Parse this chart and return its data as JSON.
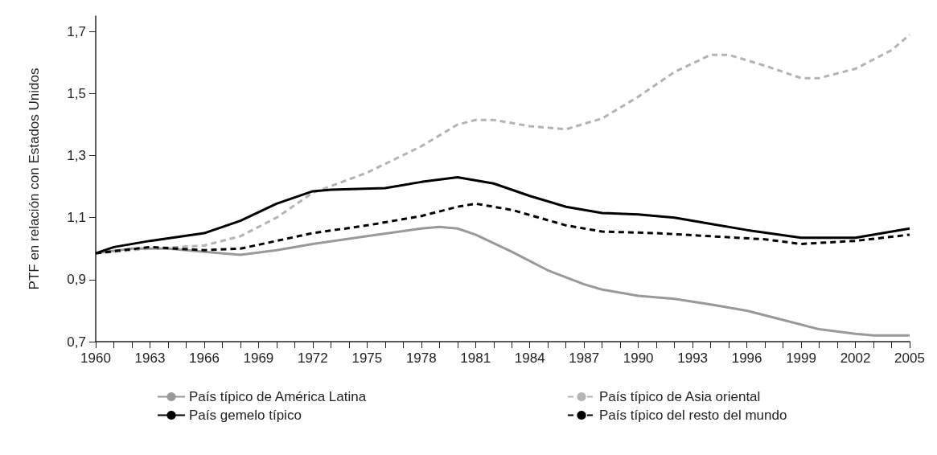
{
  "chart_data": {
    "type": "line",
    "ylabel": "PTF en relación con Estados Unidos",
    "xlim": [
      1960,
      2005
    ],
    "xticks": [
      1960,
      {
        "value": 1961,
        "label": null
      },
      {
        "value": 1962,
        "label": null
      },
      1963,
      {
        "value": 1964,
        "label": null
      },
      {
        "value": 1965,
        "label": null
      },
      1966,
      {
        "value": 1967,
        "label": null
      },
      {
        "value": 1968,
        "label": null
      },
      1969,
      {
        "value": 1970,
        "label": null
      },
      {
        "value": 1971,
        "label": null
      },
      1972,
      {
        "value": 1973,
        "label": null
      },
      {
        "value": 1974,
        "label": null
      },
      1975,
      {
        "value": 1976,
        "label": null
      },
      {
        "value": 1977,
        "label": null
      },
      1978,
      {
        "value": 1979,
        "label": null
      },
      {
        "value": 1980,
        "label": null
      },
      1981,
      {
        "value": 1982,
        "label": null
      },
      {
        "value": 1983,
        "label": null
      },
      1984,
      {
        "value": 1985,
        "label": null
      },
      {
        "value": 1986,
        "label": null
      },
      1987,
      {
        "value": 1988,
        "label": null
      },
      {
        "value": 1989,
        "label": null
      },
      1990,
      {
        "value": 1991,
        "label": null
      },
      {
        "value": 1992,
        "label": null
      },
      1993,
      {
        "value": 1994,
        "label": null
      },
      {
        "value": 1995,
        "label": null
      },
      1996,
      {
        "value": 1997,
        "label": null
      },
      {
        "value": 1998,
        "label": null
      },
      1999,
      {
        "value": 2000,
        "label": null
      },
      {
        "value": 2001,
        "label": null
      },
      2002,
      {
        "value": 2003,
        "label": null
      },
      {
        "value": 2004,
        "label": null
      },
      2005
    ],
    "ylim": [
      0.7,
      1.75
    ],
    "yticks": [
      {
        "value": 0.7,
        "label": "0,7"
      },
      {
        "value": 0.9,
        "label": "0,9"
      },
      {
        "value": 1.1,
        "label": "1,1"
      },
      {
        "value": 1.3,
        "label": "1,3"
      },
      {
        "value": 1.5,
        "label": "1,5"
      },
      {
        "value": 1.7,
        "label": "1,7"
      }
    ],
    "grid": false,
    "legend": "bottom",
    "marker": "none",
    "series": [
      {
        "name": "País típico de América Latina",
        "color": "#999999",
        "line_style": "solid",
        "x": [
          1960,
          1962,
          1964,
          1966,
          1968,
          1970,
          1972,
          1975,
          1978,
          1979,
          1980,
          1981,
          1983,
          1985,
          1987,
          1988,
          1990,
          1992,
          1994,
          1996,
          1998,
          2000,
          2002,
          2003,
          2005
        ],
        "values": [
          0.985,
          1.0,
          1.0,
          0.99,
          0.98,
          0.995,
          1.015,
          1.04,
          1.065,
          1.07,
          1.065,
          1.045,
          0.99,
          0.93,
          0.885,
          0.868,
          0.848,
          0.838,
          0.82,
          0.8,
          0.77,
          0.74,
          0.725,
          0.72,
          0.72
        ]
      },
      {
        "name": "País típico de Asia oriental",
        "color": "#b3b3b3",
        "line_style": "dashed",
        "x": [
          1960,
          1963,
          1966,
          1968,
          1970,
          1972,
          1975,
          1978,
          1980,
          1981,
          1982,
          1984,
          1986,
          1988,
          1990,
          1992,
          1994,
          1995,
          1997,
          1999,
          2000,
          2002,
          2004,
          2005
        ],
        "values": [
          0.985,
          1.0,
          1.01,
          1.04,
          1.1,
          1.18,
          1.245,
          1.33,
          1.4,
          1.415,
          1.415,
          1.395,
          1.385,
          1.42,
          1.49,
          1.57,
          1.625,
          1.625,
          1.59,
          1.55,
          1.55,
          1.58,
          1.64,
          1.69
        ]
      },
      {
        "name": "País gemelo típico",
        "color": "#000000",
        "line_style": "solid",
        "x": [
          1960,
          1961,
          1963,
          1966,
          1968,
          1970,
          1972,
          1973,
          1976,
          1978,
          1980,
          1982,
          1984,
          1986,
          1988,
          1990,
          1992,
          1994,
          1996,
          1999,
          2002,
          2005
        ],
        "values": [
          0.985,
          1.005,
          1.025,
          1.05,
          1.09,
          1.145,
          1.185,
          1.19,
          1.195,
          1.215,
          1.23,
          1.21,
          1.17,
          1.135,
          1.115,
          1.11,
          1.1,
          1.08,
          1.06,
          1.035,
          1.035,
          1.065
        ]
      },
      {
        "name": "País típico del resto del mundo",
        "color": "#000000",
        "line_style": "dashed",
        "x": [
          1960,
          1963,
          1966,
          1968,
          1970,
          1972,
          1975,
          1978,
          1980,
          1981,
          1983,
          1986,
          1988,
          1991,
          1994,
          1997,
          1999,
          2002,
          2005
        ],
        "values": [
          0.985,
          1.005,
          0.995,
          1.0,
          1.025,
          1.05,
          1.075,
          1.105,
          1.135,
          1.145,
          1.125,
          1.075,
          1.055,
          1.05,
          1.04,
          1.03,
          1.015,
          1.025,
          1.045
        ]
      }
    ]
  }
}
